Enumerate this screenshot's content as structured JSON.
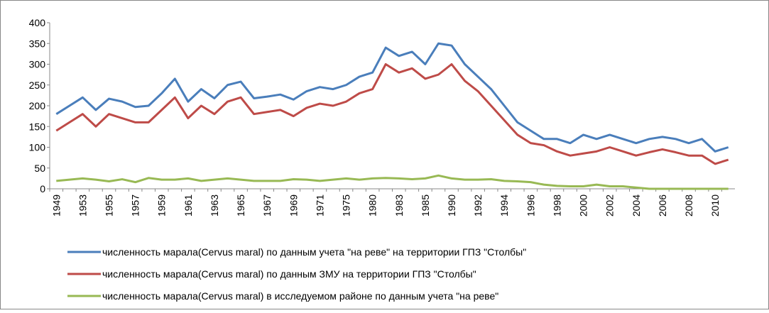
{
  "chart_data": {
    "type": "line",
    "categories": [
      "1949",
      null,
      "1953",
      null,
      "1955",
      null,
      "1957",
      null,
      "1959",
      null,
      "1961",
      null,
      "1963",
      null,
      "1965",
      null,
      "1967",
      null,
      "1969",
      null,
      "1971",
      null,
      "1975",
      null,
      "1980",
      null,
      "1983",
      null,
      "1985",
      null,
      "1990",
      null,
      "1992",
      null,
      "1994",
      null,
      "1996",
      null,
      "1998",
      null,
      "2000",
      null,
      "2002",
      null,
      "2004",
      null,
      "2006",
      null,
      "2008",
      null,
      "2010",
      null
    ],
    "series": [
      {
        "name": "численность марала(Cervus maral) по данным учета \"на реве\" на территории ГПЗ \"Столбы\"",
        "color": "#4a7ebb",
        "values": [
          180,
          200,
          220,
          190,
          217,
          210,
          197,
          200,
          230,
          265,
          210,
          240,
          218,
          250,
          258,
          218,
          222,
          227,
          215,
          235,
          245,
          240,
          250,
          270,
          280,
          340,
          320,
          330,
          300,
          350,
          345,
          300,
          270,
          240,
          200,
          160,
          140,
          120,
          120,
          110,
          130,
          120,
          130,
          120,
          110,
          120,
          125,
          120,
          110,
          120,
          90,
          100
        ]
      },
      {
        "name": "численность марала(Cervus maral) по данным ЗМУ  на территории ГПЗ \"Столбы\"",
        "color": "#be4b48",
        "values": [
          140,
          160,
          180,
          150,
          180,
          170,
          160,
          160,
          190,
          220,
          170,
          200,
          180,
          210,
          220,
          180,
          185,
          190,
          175,
          195,
          205,
          200,
          210,
          230,
          240,
          300,
          280,
          290,
          265,
          275,
          300,
          260,
          235,
          200,
          165,
          130,
          110,
          105,
          90,
          80,
          85,
          90,
          100,
          90,
          80,
          88,
          95,
          88,
          80,
          80,
          60,
          70
        ]
      },
      {
        "name": "численность марала(Cervus maral) в исследуемом районе по данным учета \"на реве\"",
        "color": "#98b954",
        "values": [
          19,
          22,
          25,
          22,
          18,
          23,
          16,
          26,
          22,
          22,
          25,
          19,
          22,
          25,
          22,
          19,
          19,
          19,
          23,
          22,
          19,
          22,
          25,
          22,
          25,
          26,
          25,
          23,
          25,
          32,
          25,
          22,
          22,
          23,
          19,
          18,
          16,
          10,
          7,
          6,
          6,
          10,
          6,
          6,
          3,
          0,
          0,
          0,
          0,
          0,
          0,
          0
        ]
      }
    ],
    "ylim": [
      0,
      400
    ],
    "yticks": [
      0,
      50,
      100,
      150,
      200,
      250,
      300,
      350,
      400
    ],
    "grid": false
  }
}
